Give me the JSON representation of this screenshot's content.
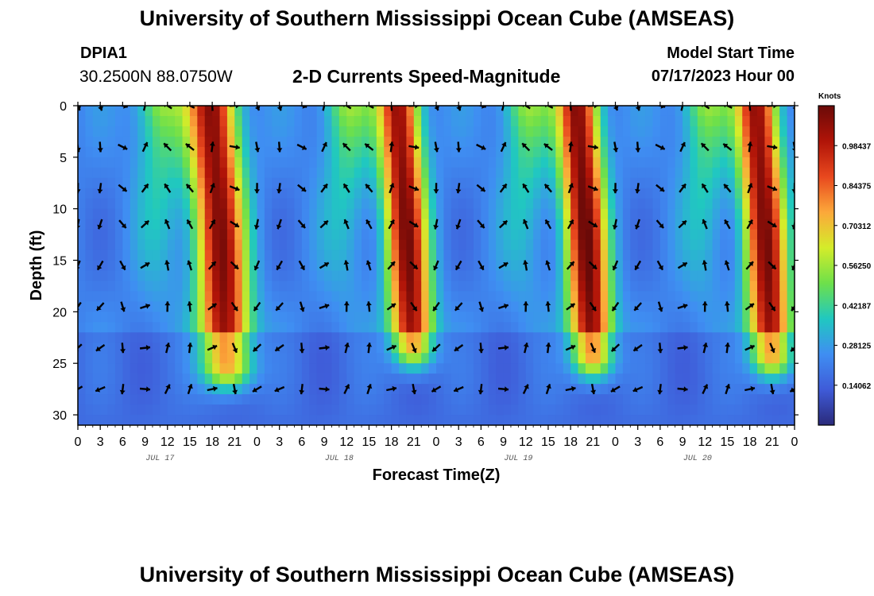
{
  "header": {
    "title": "University of Southern Mississippi Ocean Cube (AMSEAS)",
    "station_id": "DPIA1",
    "station_coords": "30.2500N  88.0750W",
    "chart_title": "2-D Currents Speed-Magnitude",
    "model_label": "Model Start Time",
    "model_date": "07/17/2023 Hour 00"
  },
  "footer": {
    "title": "University of Southern Mississippi Ocean Cube (AMSEAS)"
  },
  "chart_data": {
    "type": "heatmap",
    "title": "2-D Currents Speed-Magnitude",
    "xlabel": "Forecast Time(Z)",
    "ylabel": "Depth (ft)",
    "x_range_hours": [
      0,
      96
    ],
    "ylim": [
      31,
      0
    ],
    "x_ticks": [
      {
        "hour": 0,
        "label": "0"
      },
      {
        "hour": 3,
        "label": "3"
      },
      {
        "hour": 6,
        "label": "6"
      },
      {
        "hour": 9,
        "label": "9"
      },
      {
        "hour": 12,
        "label": "12"
      },
      {
        "hour": 15,
        "label": "15"
      },
      {
        "hour": 18,
        "label": "18"
      },
      {
        "hour": 21,
        "label": "21"
      },
      {
        "hour": 24,
        "label": "0"
      },
      {
        "hour": 27,
        "label": "3"
      },
      {
        "hour": 30,
        "label": "6"
      },
      {
        "hour": 33,
        "label": "9"
      },
      {
        "hour": 36,
        "label": "12"
      },
      {
        "hour": 39,
        "label": "15"
      },
      {
        "hour": 42,
        "label": "18"
      },
      {
        "hour": 45,
        "label": "21"
      },
      {
        "hour": 48,
        "label": "0"
      },
      {
        "hour": 51,
        "label": "3"
      },
      {
        "hour": 54,
        "label": "6"
      },
      {
        "hour": 57,
        "label": "9"
      },
      {
        "hour": 60,
        "label": "12"
      },
      {
        "hour": 63,
        "label": "15"
      },
      {
        "hour": 66,
        "label": "18"
      },
      {
        "hour": 69,
        "label": "21"
      },
      {
        "hour": 72,
        "label": "0"
      },
      {
        "hour": 75,
        "label": "3"
      },
      {
        "hour": 78,
        "label": "6"
      },
      {
        "hour": 81,
        "label": "9"
      },
      {
        "hour": 84,
        "label": "12"
      },
      {
        "hour": 87,
        "label": "15"
      },
      {
        "hour": 90,
        "label": "18"
      },
      {
        "hour": 93,
        "label": "21"
      },
      {
        "hour": 96,
        "label": "0"
      }
    ],
    "day_labels": [
      {
        "hour": 11,
        "label": "JUL 17"
      },
      {
        "hour": 35,
        "label": "JUL 18"
      },
      {
        "hour": 59,
        "label": "JUL 19"
      },
      {
        "hour": 83,
        "label": "JUL 20"
      }
    ],
    "y_ticks": [
      0,
      5,
      10,
      15,
      20,
      25,
      30
    ],
    "colorbar": {
      "label": "Knots",
      "min": 0.0,
      "max": 1.125,
      "tick_values": [
        "0.14062",
        "0.28125",
        "0.42187",
        "0.56250",
        "0.70312",
        "0.84375",
        "0.98437"
      ],
      "colors": [
        "#2a2a7a",
        "#3f5bd8",
        "#3f8ef2",
        "#20c8c0",
        "#6ee04a",
        "#d4ec2a",
        "#fca83a",
        "#e8481e",
        "#b01408",
        "#6a0a08"
      ]
    },
    "high_speed_events": [
      {
        "center_hour": 18,
        "width_hours": 6,
        "peak_knots": 1.05,
        "surface_extent_ft": 25
      },
      {
        "center_hour": 43,
        "width_hours": 5,
        "peak_knots": 1.05,
        "surface_extent_ft": 23
      },
      {
        "center_hour": 67,
        "width_hours": 5,
        "peak_knots": 1.08,
        "surface_extent_ft": 24
      },
      {
        "center_hour": 91,
        "width_hours": 5,
        "peak_knots": 1.05,
        "surface_extent_ft": 24
      }
    ],
    "arrow_depths_ft": [
      0,
      4,
      8,
      11.5,
      15.5,
      19.5,
      23.5,
      27.5
    ],
    "arrow_hours": [
      0,
      3,
      6,
      9,
      12,
      15,
      18,
      21,
      24,
      27,
      30,
      33,
      36,
      39,
      42,
      45,
      48,
      51,
      54,
      57,
      60,
      63,
      66,
      69,
      72,
      75,
      78,
      81,
      84,
      87,
      90,
      93,
      96
    ]
  }
}
